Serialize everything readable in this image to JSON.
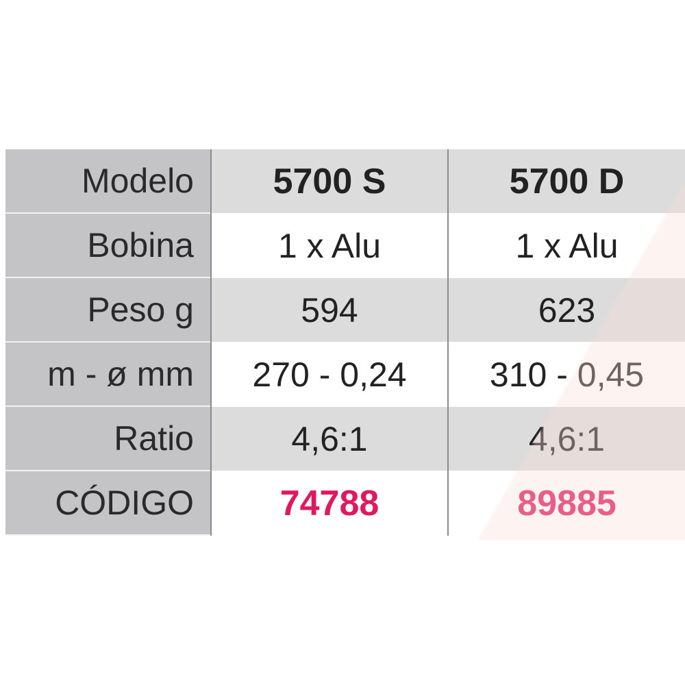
{
  "table": {
    "columns": [
      "5700 S",
      "5700 D"
    ],
    "header_label": "Modelo",
    "rows": [
      {
        "label": "Bobina",
        "values": [
          "1 x Alu",
          "1 x Alu"
        ]
      },
      {
        "label": "Peso g",
        "values": [
          "594",
          "623"
        ]
      },
      {
        "label": "m - ø mm",
        "values": [
          "270 - 0,24",
          "310 - 0,45"
        ]
      },
      {
        "label": "Ratio",
        "values": [
          "4,6:1",
          "4,6:1"
        ]
      },
      {
        "label": "CÓDIGO",
        "values": [
          "74788",
          "89885"
        ]
      }
    ],
    "code_color": "#e0195f"
  }
}
